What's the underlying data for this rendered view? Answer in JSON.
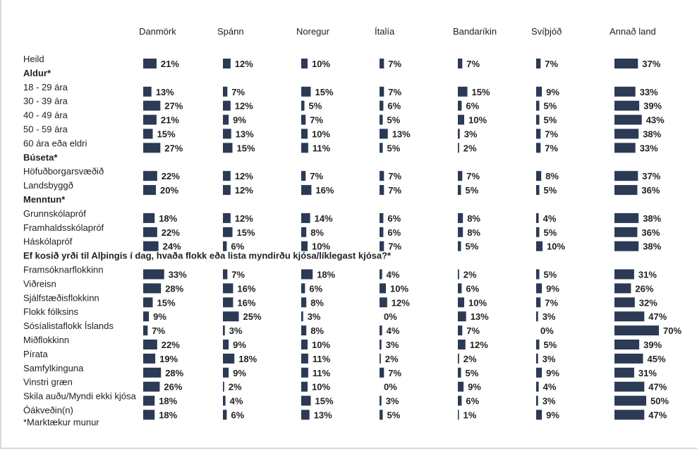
{
  "chart_data": {
    "type": "bar",
    "orientation": "horizontal",
    "bar_color": "#2b3a55",
    "value_suffix": "%",
    "footnote": "*Marktækur munur",
    "columns": [
      "Danmörk",
      "Spánn",
      "Noregur",
      "Ítalía",
      "Bandaríkin",
      "Svíþjóð",
      "Annað land"
    ],
    "rows": [
      {
        "label": "Heild",
        "kind": "data",
        "values": [
          21,
          12,
          10,
          7,
          7,
          7,
          37
        ]
      },
      {
        "label": "Aldur*",
        "kind": "header"
      },
      {
        "label": "18 - 29 ára",
        "kind": "data",
        "values": [
          13,
          7,
          15,
          7,
          15,
          9,
          33
        ]
      },
      {
        "label": "30 - 39 ára",
        "kind": "data",
        "values": [
          27,
          12,
          5,
          6,
          6,
          5,
          39
        ]
      },
      {
        "label": "40 - 49 ára",
        "kind": "data",
        "values": [
          21,
          9,
          7,
          5,
          10,
          5,
          43
        ]
      },
      {
        "label": "50 - 59 ára",
        "kind": "data",
        "values": [
          15,
          13,
          10,
          13,
          3,
          7,
          38
        ]
      },
      {
        "label": "60 ára eða eldri",
        "kind": "data",
        "values": [
          27,
          15,
          11,
          5,
          2,
          7,
          33
        ]
      },
      {
        "label": "Búseta*",
        "kind": "header"
      },
      {
        "label": "Höfuðborgarsvæðið",
        "kind": "data",
        "values": [
          22,
          12,
          7,
          7,
          7,
          8,
          37
        ]
      },
      {
        "label": "Landsbyggð",
        "kind": "data",
        "values": [
          20,
          12,
          16,
          7,
          5,
          5,
          36
        ]
      },
      {
        "label": "Menntun*",
        "kind": "header"
      },
      {
        "label": "Grunnskólapróf",
        "kind": "data",
        "values": [
          18,
          12,
          14,
          6,
          8,
          4,
          38
        ]
      },
      {
        "label": "Framhaldsskólapróf",
        "kind": "data",
        "values": [
          22,
          15,
          8,
          6,
          8,
          5,
          36
        ]
      },
      {
        "label": "Háskólapróf",
        "kind": "data",
        "values": [
          24,
          6,
          10,
          7,
          5,
          10,
          38
        ]
      },
      {
        "label": "Ef kosið yrði til Alþingis í dag, hvaða flokk eða lista myndirðu kjósa/líklegast kjósa?*",
        "kind": "header"
      },
      {
        "label": "Framsóknarflokkinn",
        "kind": "data",
        "values": [
          33,
          7,
          18,
          4,
          2,
          5,
          31
        ]
      },
      {
        "label": "Viðreisn",
        "kind": "data",
        "values": [
          28,
          16,
          6,
          10,
          6,
          9,
          26
        ]
      },
      {
        "label": "Sjálfstæðisflokkinn",
        "kind": "data",
        "values": [
          15,
          16,
          8,
          12,
          10,
          7,
          32
        ]
      },
      {
        "label": "Flokk fólksins",
        "kind": "data",
        "values": [
          9,
          25,
          3,
          0,
          13,
          3,
          47
        ]
      },
      {
        "label": "Sósíalistaflokk Íslands",
        "kind": "data",
        "values": [
          7,
          3,
          8,
          4,
          7,
          0,
          70
        ]
      },
      {
        "label": "Miðflokkinn",
        "kind": "data",
        "values": [
          22,
          9,
          10,
          3,
          12,
          5,
          39
        ]
      },
      {
        "label": "Pírata",
        "kind": "data",
        "values": [
          19,
          18,
          11,
          2,
          2,
          3,
          45
        ]
      },
      {
        "label": "Samfylkinguna",
        "kind": "data",
        "values": [
          28,
          9,
          11,
          7,
          5,
          9,
          31
        ]
      },
      {
        "label": "Vinstri græn",
        "kind": "data",
        "values": [
          26,
          2,
          10,
          0,
          9,
          4,
          47
        ]
      },
      {
        "label": "Skila auðu/Myndi ekki kjósa",
        "kind": "data",
        "values": [
          18,
          4,
          15,
          3,
          6,
          3,
          50
        ]
      },
      {
        "label": "Óákveðin(n)",
        "kind": "data",
        "values": [
          18,
          6,
          13,
          5,
          1,
          9,
          47
        ]
      }
    ]
  }
}
